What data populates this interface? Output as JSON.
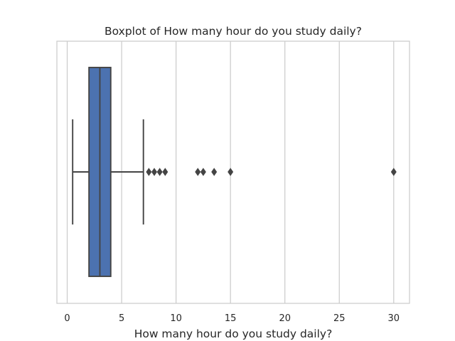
{
  "chart_data": {
    "type": "boxplot",
    "orientation": "horizontal",
    "title": "Boxplot of How many hour do you study daily?",
    "xlabel": "How many hour do you study daily?",
    "ylabel": "",
    "xlim": [
      -0.95,
      31.45
    ],
    "xticks": [
      0,
      5,
      10,
      15,
      20,
      25,
      30
    ],
    "xtick_labels": [
      "0",
      "5",
      "10",
      "15",
      "20",
      "25",
      "30"
    ],
    "grid": true,
    "box": {
      "whisker_low": 0.5,
      "q1": 2,
      "median": 3,
      "q3": 4,
      "whisker_high": 7
    },
    "outliers": [
      7.5,
      8,
      8.5,
      9,
      12,
      12.5,
      13.5,
      15,
      30
    ],
    "colors": {
      "box_fill": "#4c72b0",
      "line": "#444444",
      "grid": "#cccccc",
      "spine": "#cccccc",
      "text": "#262626"
    }
  }
}
